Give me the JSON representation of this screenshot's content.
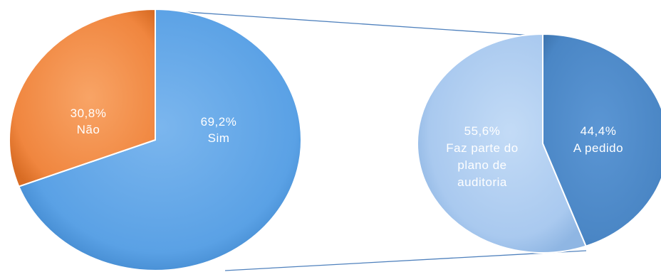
{
  "chart_data": {
    "type": "pie",
    "main_pie": {
      "slices": [
        {
          "label": "Sim",
          "percent_label": "69,2%",
          "value": 69.2,
          "color": "#5aa1e5"
        },
        {
          "label": "Não",
          "percent_label": "30,8%",
          "value": 30.8,
          "color": "#f0863f"
        }
      ]
    },
    "secondary_pie": {
      "breakdown_of": "Sim",
      "slices": [
        {
          "label_lines": [
            "Faz parte do",
            "plano de",
            "auditoria"
          ],
          "percent_label": "55,6%",
          "value": 55.6,
          "color": "#a9c9ef"
        },
        {
          "label_lines": [
            "A pedido"
          ],
          "percent_label": "44,4%",
          "value": 44.4,
          "color": "#4a86c5"
        }
      ]
    },
    "connector_color": "#4f81bd"
  }
}
